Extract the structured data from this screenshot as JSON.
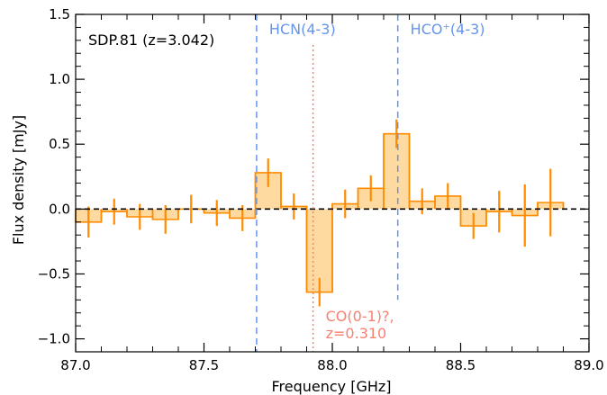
{
  "chart_data": {
    "type": "bar",
    "title": "",
    "xlabel": "Frequency [GHz]",
    "ylabel": "Flux density [mJy]",
    "xlim": [
      87.0,
      89.0
    ],
    "ylim": [
      -1.1,
      1.5
    ],
    "x_ticks": [
      "87.0",
      "87.5",
      "88.0",
      "88.5",
      "89.0"
    ],
    "x_tick_values": [
      87.0,
      87.5,
      88.0,
      88.5,
      89.0
    ],
    "y_ticks": [
      "−1.0",
      "−0.5",
      "0.0",
      "0.5",
      "1.0",
      "1.5"
    ],
    "y_tick_values": [
      -1.0,
      -0.5,
      0.0,
      0.5,
      1.0,
      1.5
    ],
    "grid": false,
    "bin_width": 0.1,
    "bins": [
      {
        "x": 87.0,
        "value": -0.1,
        "err": 0.12
      },
      {
        "x": 87.1,
        "value": -0.02,
        "err": 0.1
      },
      {
        "x": 87.2,
        "value": -0.06,
        "err": 0.1
      },
      {
        "x": 87.3,
        "value": -0.08,
        "err": 0.11
      },
      {
        "x": 87.4,
        "value": 0.0,
        "err": 0.11
      },
      {
        "x": 87.5,
        "value": -0.03,
        "err": 0.1
      },
      {
        "x": 87.6,
        "value": -0.07,
        "err": 0.1
      },
      {
        "x": 87.7,
        "value": 0.28,
        "err": 0.11
      },
      {
        "x": 87.8,
        "value": 0.02,
        "err": 0.1
      },
      {
        "x": 87.9,
        "value": -0.64,
        "err": 0.11
      },
      {
        "x": 88.0,
        "value": 0.04,
        "err": 0.11
      },
      {
        "x": 88.1,
        "value": 0.16,
        "err": 0.1
      },
      {
        "x": 88.2,
        "value": 0.58,
        "err": 0.11
      },
      {
        "x": 88.3,
        "value": 0.06,
        "err": 0.1
      },
      {
        "x": 88.4,
        "value": 0.1,
        "err": 0.1
      },
      {
        "x": 88.5,
        "value": -0.13,
        "err": 0.1
      },
      {
        "x": 88.6,
        "value": -0.02,
        "err": 0.16
      },
      {
        "x": 88.7,
        "value": -0.05,
        "err": 0.24
      },
      {
        "x": 88.8,
        "value": 0.05,
        "err": 0.26
      }
    ],
    "zero_line": 0.0,
    "vertical_lines": [
      {
        "label": "HCN(4-3)",
        "x": 87.705,
        "style": "dashed",
        "color": "#6495ED"
      },
      {
        "label": "HCO⁺(4-3)",
        "x": 88.255,
        "style": "dashed",
        "color": "#6495ED"
      },
      {
        "label": "CO(0-1)?,",
        "label2": "z=0.310",
        "x": 87.925,
        "style": "dotted",
        "color": "#FA8072"
      }
    ],
    "annotation": "SDP.81 (z=3.042)",
    "colors": {
      "fill": "#FFDAA0",
      "edge": "#FF8C00",
      "hcn": "#6495ED",
      "co": "#FA8072",
      "axis": "#000000"
    }
  }
}
